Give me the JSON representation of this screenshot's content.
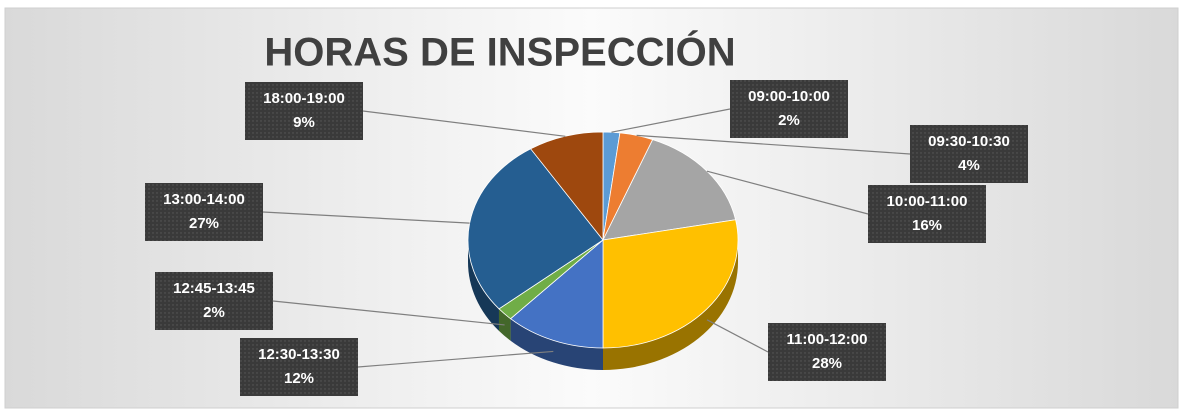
{
  "chart_data": {
    "type": "pie",
    "title": "HORAS DE INSPECCIÓN",
    "categories": [
      "09:00-10:00",
      "09:30-10:30",
      "10:00-11:00",
      "11:00-12:00",
      "12:30-13:30",
      "12:45-13:45",
      "13:00-14:00",
      "18:00-19:00"
    ],
    "values": [
      2,
      4,
      16,
      28,
      12,
      2,
      27,
      9
    ],
    "value_labels": [
      "2%",
      "4%",
      "16%",
      "28%",
      "12%",
      "2%",
      "27%",
      "9%"
    ],
    "colors": [
      "#5b9bd5",
      "#ed7d31",
      "#a5a5a5",
      "#ffc000",
      "#4472c4",
      "#70ad47",
      "#255e91",
      "#9e480e"
    ]
  }
}
